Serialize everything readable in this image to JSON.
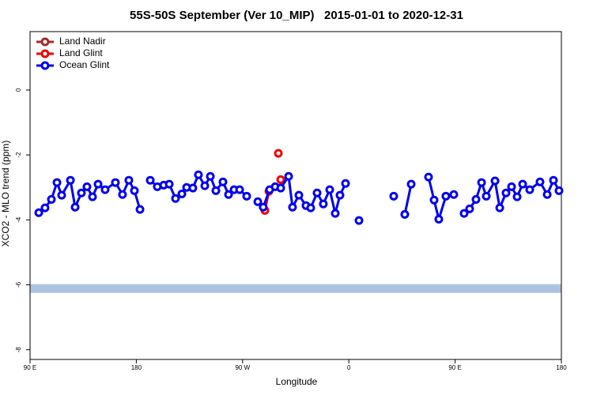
{
  "chart_data": {
    "type": "line",
    "title": "55S-50S September (Ver 10_MIP)   2015-01-01 to 2020-12-31",
    "x_label": "Longitude",
    "y_label": "XCO2 - MLO trend (ppm)",
    "xlim": [
      90,
      540
    ],
    "ylim": [
      -8.3,
      1.8
    ],
    "xticks": [
      {
        "value": 90,
        "label": "90 E"
      },
      180,
      {
        "value": 270,
        "label": "90 W"
      },
      {
        "value": 360,
        "label": "0"
      },
      {
        "value": 450,
        "label": "90 E"
      },
      {
        "value": 540,
        "label": "180"
      }
    ],
    "yticks": [
      0,
      -2,
      -4,
      -6,
      -8
    ],
    "legend_position": "top-left",
    "reference_band": {
      "ylim": [
        -6.25,
        -5.98
      ],
      "color": "#aec3e0"
    },
    "series": [
      {
        "name": "Land Nadir",
        "color": "#a52a2a",
        "x": [],
        "values": []
      },
      {
        "name": "Land Glint",
        "color": "#ee0000",
        "x": [
          288.9,
          292.3,
          null,
          300.3,
          null,
          302.3
        ],
        "values": [
          -3.71,
          -3.12,
          null,
          -1.95,
          null,
          -2.76
        ]
      },
      {
        "name": "Ocean Glint",
        "color": "#0000ee",
        "x": [
          97.4,
          102.7,
          108.1,
          112.8,
          116.8,
          124.2,
          128.2,
          133.5,
          138.2,
          142.9,
          147.6,
          153.6,
          162.3,
          168.3,
          173.7,
          178.4,
          183.1,
          null,
          191.8,
          197.8,
          203.2,
          207.9,
          213.2,
          218.6,
          222.6,
          227.9,
          232.6,
          238.0,
          242.7,
          247.4,
          253.4,
          258.1,
          262.8,
          267.5,
          273.5,
          null,
          282.9,
          287.5,
          292.9,
          297.6,
          302.3,
          309.0,
          312.3,
          317.7,
          323.7,
          327.7,
          333.1,
          338.4,
          343.8,
          348.5,
          352.5,
          357.2,
          null,
          368.6,
          null,
          398.0,
          null,
          407.4,
          412.8,
          null,
          427.5,
          432.2,
          436.2,
          442.2,
          448.9,
          null,
          457.6,
          462.3,
          467.7,
          472.4,
          476.4,
          483.8,
          487.8,
          493.1,
          497.8,
          502.5,
          507.2,
          513.2,
          521.9,
          528.0,
          533.3,
          538.0
        ],
        "values": [
          -3.78,
          -3.63,
          -3.37,
          -2.85,
          -3.24,
          -2.78,
          -3.61,
          -3.17,
          -2.98,
          -3.29,
          -2.9,
          -3.07,
          -2.85,
          -3.22,
          -2.78,
          -3.1,
          -3.68,
          null,
          -2.78,
          -2.98,
          -2.93,
          -2.9,
          -3.34,
          -3.2,
          -3.0,
          -3.02,
          -2.61,
          -2.95,
          -2.66,
          -3.1,
          -2.83,
          -3.22,
          -3.07,
          -3.07,
          -3.27,
          null,
          -3.44,
          -3.61,
          -3.07,
          -2.98,
          -3.02,
          -2.66,
          -3.61,
          -3.24,
          -3.56,
          -3.63,
          -3.17,
          -3.51,
          -3.07,
          -3.8,
          -3.24,
          -2.88,
          null,
          -4.02,
          null,
          -3.27,
          null,
          -3.83,
          -2.9,
          null,
          -2.68,
          -3.39,
          -3.98,
          -3.27,
          -3.22,
          null,
          -3.8,
          -3.66,
          -3.37,
          -2.85,
          -3.27,
          -2.8,
          -3.63,
          -3.17,
          -2.98,
          -3.29,
          -2.9,
          -3.07,
          -2.83,
          -3.22,
          -2.78,
          -3.1
        ]
      }
    ]
  }
}
